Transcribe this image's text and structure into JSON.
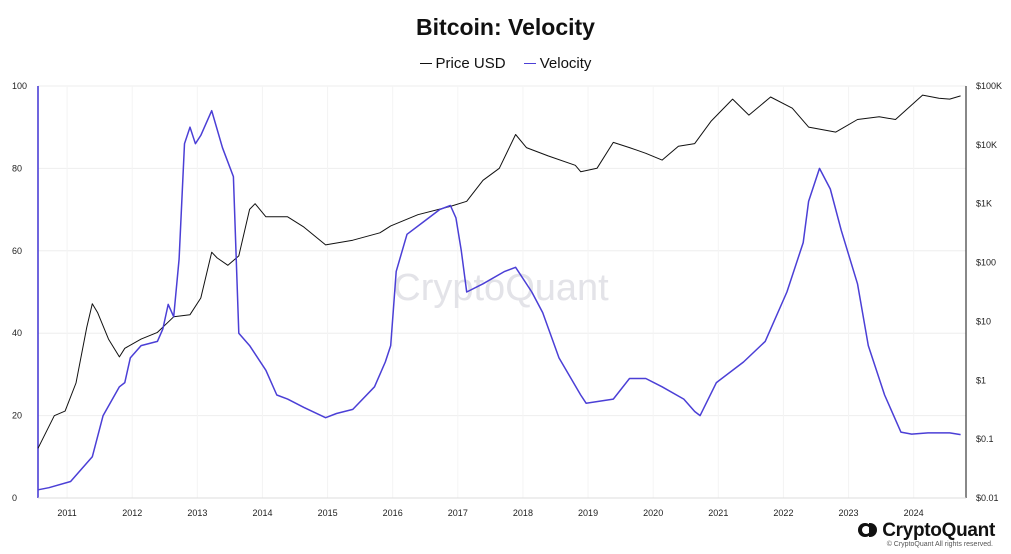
{
  "chart_data": {
    "type": "line",
    "title": "Bitcoin: Velocity",
    "legend_position": "top-center",
    "grid": true,
    "watermark": "CryptoQuant",
    "x_ticks": [
      "2011",
      "2012",
      "2013",
      "2014",
      "2015",
      "2016",
      "2017",
      "2018",
      "2019",
      "2020",
      "2021",
      "2022",
      "2023",
      "2024"
    ],
    "y_left": {
      "ylim": [
        0,
        100
      ],
      "ticks": [
        "0",
        "20",
        "40",
        "60",
        "80",
        "100"
      ]
    },
    "y_right": {
      "scale": "log",
      "ylim": [
        0.01,
        100000
      ],
      "ticks": [
        "$0.01",
        "$0.1",
        "$1",
        "$10",
        "$100",
        "$1K",
        "$10K",
        "$100K"
      ]
    },
    "series": [
      {
        "name": "Price USD",
        "axis": "right",
        "color": "#111111",
        "points": [
          [
            "2010-08",
            0.07
          ],
          [
            "2010-11",
            0.25
          ],
          [
            "2011-01",
            0.3
          ],
          [
            "2011-03",
            0.9
          ],
          [
            "2011-05",
            8
          ],
          [
            "2011-06",
            20
          ],
          [
            "2011-07",
            14
          ],
          [
            "2011-09",
            5
          ],
          [
            "2011-11",
            2.5
          ],
          [
            "2011-12",
            3.5
          ],
          [
            "2012-03",
            5
          ],
          [
            "2012-06",
            6.5
          ],
          [
            "2012-09",
            12
          ],
          [
            "2012-12",
            13
          ],
          [
            "2013-02",
            25
          ],
          [
            "2013-04",
            150
          ],
          [
            "2013-05",
            120
          ],
          [
            "2013-07",
            90
          ],
          [
            "2013-09",
            130
          ],
          [
            "2013-11",
            800
          ],
          [
            "2013-12",
            1000
          ],
          [
            "2014-02",
            600
          ],
          [
            "2014-06",
            600
          ],
          [
            "2014-09",
            400
          ],
          [
            "2015-01",
            200
          ],
          [
            "2015-06",
            240
          ],
          [
            "2015-11",
            320
          ],
          [
            "2016-01",
            420
          ],
          [
            "2016-06",
            650
          ],
          [
            "2016-12",
            900
          ],
          [
            "2017-03",
            1100
          ],
          [
            "2017-06",
            2500
          ],
          [
            "2017-09",
            4000
          ],
          [
            "2017-12",
            15000
          ],
          [
            "2018-02",
            9000
          ],
          [
            "2018-06",
            6500
          ],
          [
            "2018-11",
            4500
          ],
          [
            "2018-12",
            3500
          ],
          [
            "2019-03",
            4000
          ],
          [
            "2019-06",
            11000
          ],
          [
            "2019-09",
            9000
          ],
          [
            "2019-12",
            7200
          ],
          [
            "2020-03",
            5500
          ],
          [
            "2020-06",
            9500
          ],
          [
            "2020-09",
            10500
          ],
          [
            "2020-12",
            25000
          ],
          [
            "2021-04",
            60000
          ],
          [
            "2021-07",
            32000
          ],
          [
            "2021-11",
            65000
          ],
          [
            "2022-03",
            42000
          ],
          [
            "2022-06",
            20000
          ],
          [
            "2022-11",
            16500
          ],
          [
            "2023-03",
            27000
          ],
          [
            "2023-07",
            30000
          ],
          [
            "2023-10",
            27000
          ],
          [
            "2024-03",
            70000
          ],
          [
            "2024-06",
            62000
          ],
          [
            "2024-08",
            60000
          ],
          [
            "2024-10",
            68000
          ]
        ]
      },
      {
        "name": "Velocity",
        "axis": "left",
        "color": "#4b3fd6",
        "points": [
          [
            "2010-08",
            2
          ],
          [
            "2010-10",
            2.5
          ],
          [
            "2011-02",
            4
          ],
          [
            "2011-06",
            10
          ],
          [
            "2011-08",
            20
          ],
          [
            "2011-11",
            27
          ],
          [
            "2011-12",
            28
          ],
          [
            "2012-01",
            34
          ],
          [
            "2012-03",
            37
          ],
          [
            "2012-06",
            38
          ],
          [
            "2012-07",
            41
          ],
          [
            "2012-08",
            47
          ],
          [
            "2012-09",
            44
          ],
          [
            "2012-10",
            58
          ],
          [
            "2012-11",
            86
          ],
          [
            "2012-12",
            90
          ],
          [
            "2013-01",
            86
          ],
          [
            "2013-02",
            88
          ],
          [
            "2013-04",
            94
          ],
          [
            "2013-06",
            85
          ],
          [
            "2013-08",
            78
          ],
          [
            "2013-09",
            40
          ],
          [
            "2013-11",
            37
          ],
          [
            "2014-02",
            31
          ],
          [
            "2014-04",
            25
          ],
          [
            "2014-06",
            24
          ],
          [
            "2014-09",
            22
          ],
          [
            "2015-01",
            19.5
          ],
          [
            "2015-03",
            20.5
          ],
          [
            "2015-06",
            21.5
          ],
          [
            "2015-10",
            27
          ],
          [
            "2015-12",
            33
          ],
          [
            "2016-01",
            37
          ],
          [
            "2016-02",
            55
          ],
          [
            "2016-04",
            64
          ],
          [
            "2016-07",
            67
          ],
          [
            "2016-10",
            70
          ],
          [
            "2016-12",
            71
          ],
          [
            "2017-01",
            68
          ],
          [
            "2017-02",
            60
          ],
          [
            "2017-03",
            50
          ],
          [
            "2017-06",
            52
          ],
          [
            "2017-10",
            55
          ],
          [
            "2017-12",
            56
          ],
          [
            "2018-03",
            50
          ],
          [
            "2018-05",
            45
          ],
          [
            "2018-08",
            34
          ],
          [
            "2018-12",
            25
          ],
          [
            "2019-01",
            23
          ],
          [
            "2019-06",
            24
          ],
          [
            "2019-09",
            29
          ],
          [
            "2019-12",
            29
          ],
          [
            "2020-03",
            27
          ],
          [
            "2020-07",
            24
          ],
          [
            "2020-09",
            21
          ],
          [
            "2020-10",
            20
          ],
          [
            "2021-01",
            28
          ],
          [
            "2021-06",
            33
          ],
          [
            "2021-10",
            38
          ],
          [
            "2022-02",
            50
          ],
          [
            "2022-05",
            62
          ],
          [
            "2022-06",
            72
          ],
          [
            "2022-08",
            80
          ],
          [
            "2022-10",
            75
          ],
          [
            "2022-12",
            65
          ],
          [
            "2023-03",
            52
          ],
          [
            "2023-05",
            37
          ],
          [
            "2023-08",
            25
          ],
          [
            "2023-11",
            16
          ],
          [
            "2024-01",
            15.5
          ],
          [
            "2024-04",
            15.8
          ],
          [
            "2024-08",
            15.8
          ],
          [
            "2024-10",
            15.4
          ]
        ]
      }
    ]
  },
  "brand": {
    "name": "CryptoQuant",
    "copyright": "© CryptoQuant All rights reserved."
  }
}
